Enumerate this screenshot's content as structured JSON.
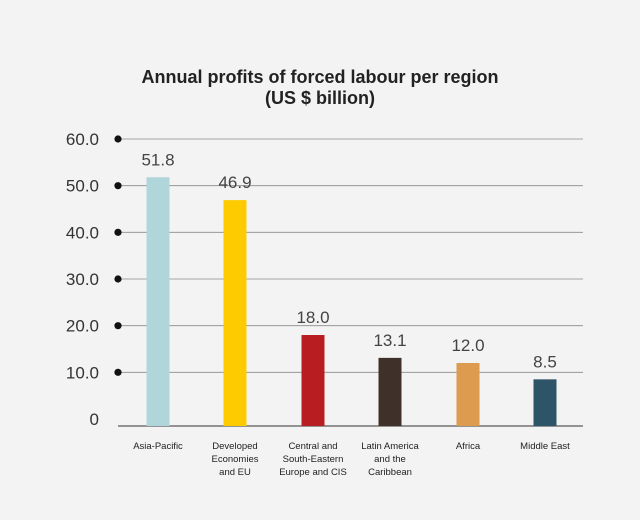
{
  "chart_data": {
    "type": "bar",
    "title": "Annual profits of forced labour per region",
    "subtitle": "(US $ billion)",
    "categories": [
      "Asia-Pacific",
      "Developed Economies and EU",
      "Central and South-Eastern Europe and CIS",
      "Latin America and the Caribbean",
      "Africa",
      "Middle East"
    ],
    "category_lines": [
      [
        "Asia-Pacific"
      ],
      [
        "Developed",
        "Economies",
        "and EU"
      ],
      [
        "Central and",
        "South-Eastern",
        "Europe and CIS"
      ],
      [
        "Latin America",
        "and the",
        "Caribbean"
      ],
      [
        "Africa"
      ],
      [
        "Middle East"
      ]
    ],
    "values": [
      51.8,
      46.9,
      18.0,
      13.1,
      12.0,
      8.5
    ],
    "value_labels": [
      "51.8",
      "46.9",
      "18.0",
      "13.1",
      "12.0",
      "8.5"
    ],
    "colors": [
      "#b0d5db",
      "#fdcb00",
      "#b81e21",
      "#40302a",
      "#dc9b4e",
      "#2d5467"
    ],
    "yticks": [
      "0",
      "10.0",
      "20.0",
      "30.0",
      "40.0",
      "50.0",
      "60.0"
    ],
    "ylim": [
      0,
      60
    ],
    "grid": true,
    "xlabel": "",
    "ylabel": ""
  }
}
